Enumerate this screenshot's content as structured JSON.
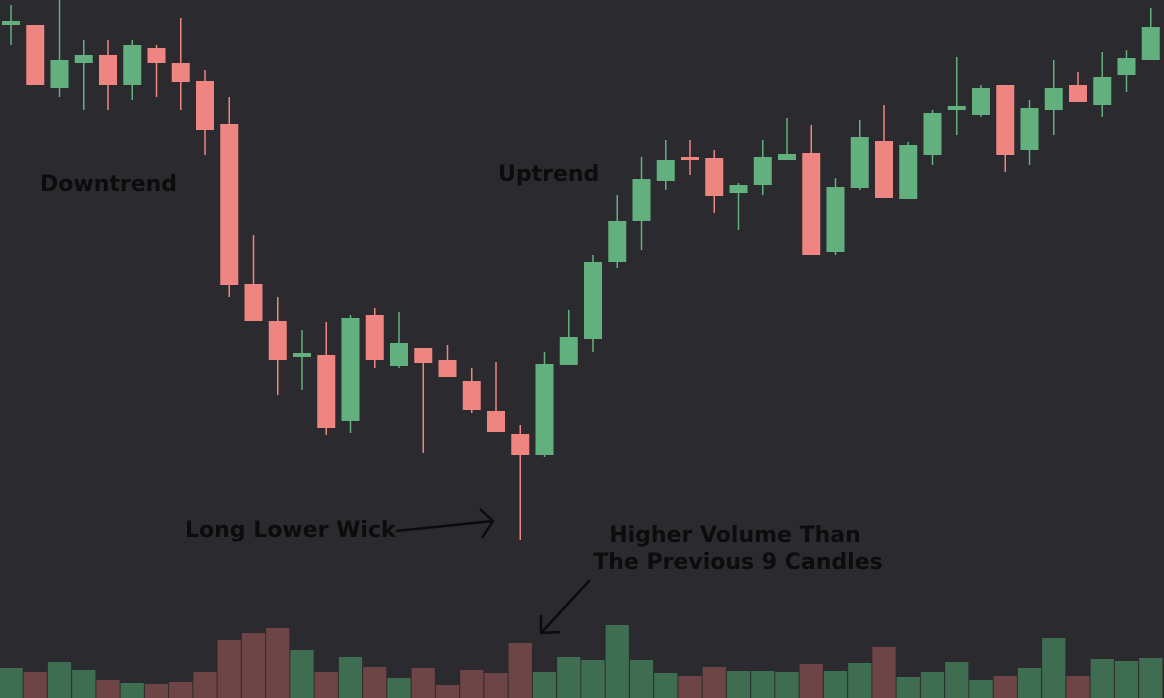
{
  "chart_data": {
    "type": "candlestick",
    "annotations": {
      "downtrend": "Downtrend",
      "uptrend": "Uptrend",
      "wick": "Long Lower Wick",
      "volume": [
        "Higher Volume Than",
        "The Previous 9 Candles"
      ]
    },
    "open": [
      673,
      673,
      610,
      635,
      643,
      613,
      650,
      635,
      617,
      574,
      414,
      377,
      341,
      343,
      277,
      383,
      332,
      350,
      338,
      317,
      287,
      264,
      243,
      333,
      359,
      436,
      477,
      517,
      541,
      540,
      505,
      513,
      538,
      545,
      446,
      510,
      557,
      499,
      543,
      588,
      583,
      613,
      548,
      588,
      613,
      593,
      623,
      638
    ],
    "high": [
      693,
      673,
      698,
      658,
      658,
      658,
      653,
      680,
      628,
      601,
      463,
      401,
      368,
      376,
      383,
      390,
      386,
      350,
      353,
      330,
      336,
      273,
      346,
      388,
      443,
      503,
      541,
      558,
      558,
      548,
      515,
      558,
      580,
      573,
      520,
      578,
      593,
      556,
      588,
      641,
      613,
      613,
      598,
      638,
      626,
      646,
      648,
      690
    ],
    "low": [
      653,
      613,
      601,
      588,
      588,
      598,
      601,
      588,
      543,
      401,
      377,
      303,
      308,
      263,
      265,
      330,
      330,
      245,
      321,
      285,
      266,
      158,
      241,
      333,
      346,
      430,
      448,
      508,
      523,
      485,
      468,
      503,
      538,
      443,
      443,
      508,
      500,
      499,
      533,
      563,
      581,
      526,
      533,
      563,
      596,
      581,
      606,
      638
    ],
    "close": [
      677,
      613,
      638,
      643,
      613,
      653,
      635,
      616,
      568,
      413,
      377,
      338,
      345,
      270,
      380,
      338,
      355,
      335,
      321,
      288,
      266,
      243,
      334,
      361,
      436,
      477,
      519,
      538,
      538,
      502,
      513,
      541,
      544,
      443,
      511,
      561,
      500,
      553,
      585,
      592,
      610,
      543,
      590,
      610,
      596,
      621,
      640,
      671
    ],
    "volume": [
      30,
      26,
      36,
      28,
      18,
      15,
      14,
      16,
      26,
      58,
      65,
      70,
      48,
      26,
      41,
      31,
      20,
      30,
      13,
      28,
      25,
      55,
      26,
      41,
      38,
      73,
      38,
      25,
      22,
      31,
      27,
      27,
      26,
      34,
      27,
      35,
      51,
      21,
      26,
      36,
      18,
      22,
      30,
      60,
      22,
      39,
      37,
      40
    ],
    "ylim": [
      0,
      698
    ],
    "volume_ylim": [
      0,
      698
    ],
    "up_color": "#63b07f",
    "down_color": "#ee8581",
    "volume_up_color": "#3f6d51",
    "volume_down_color": "#6d4547"
  }
}
